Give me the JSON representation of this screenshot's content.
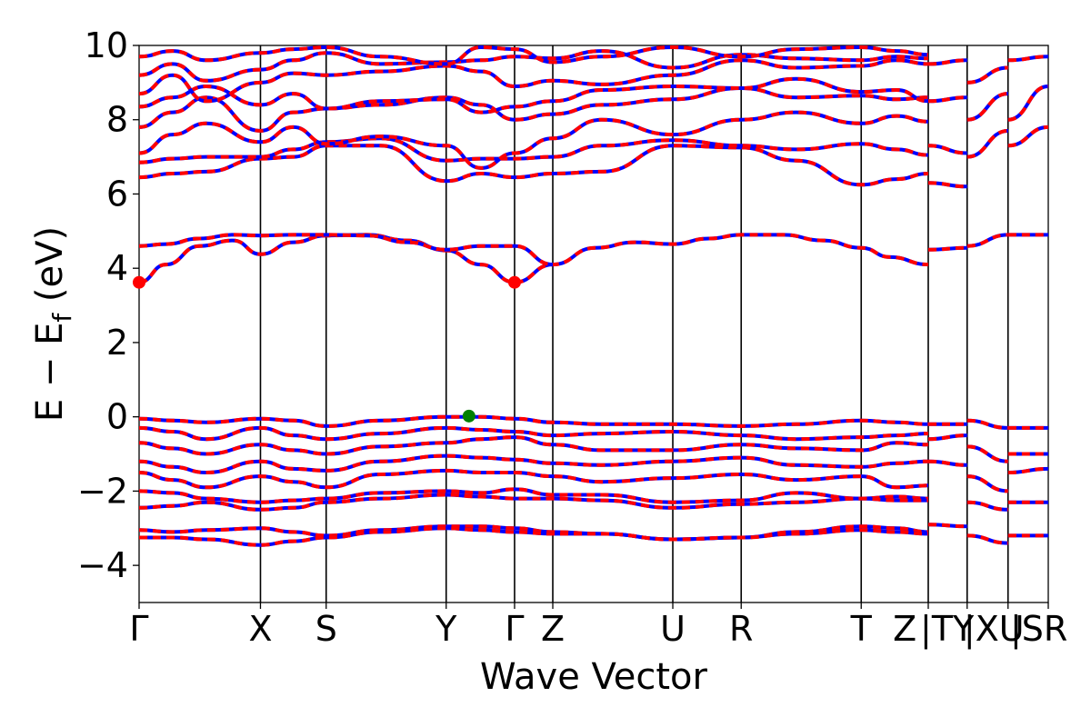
{
  "chart_data": {
    "type": "line",
    "title": "",
    "xlabel": "Wave Vector",
    "ylabel": "E − E_f (eV)",
    "ylabel_parts": {
      "prefix": "E − E",
      "subscript": "f",
      "suffix": " (eV)"
    },
    "ylim": [
      -5,
      10
    ],
    "yticks": [
      -4,
      -2,
      0,
      2,
      4,
      6,
      8,
      10
    ],
    "ytick_labels": [
      "−4",
      "−2",
      "0",
      "2",
      "4",
      "6",
      "8",
      "10"
    ],
    "grid": false,
    "legend": "none",
    "colors": {
      "series_a": "#ff0000",
      "series_b": "#0000ff",
      "vbm": "#008000",
      "cbm": "#ff0000"
    },
    "kpath_positions": [
      0,
      1.81,
      2.79,
      4.58,
      5.6,
      6.17,
      7.96,
      8.98,
      10.77,
      11.77,
      12.35,
      12.96,
      13.56
    ],
    "kpoint_labels": [
      "Γ",
      "X",
      "S",
      "Y",
      "Γ",
      "Z",
      "U",
      "R",
      "T",
      "Z",
      "|TY",
      "|XU",
      "|SR"
    ],
    "kpoint_label_positions": [
      0,
      1.81,
      2.79,
      4.58,
      5.6,
      6.17,
      7.96,
      8.98,
      10.77,
      11.42,
      12.05,
      12.75,
      13.42
    ],
    "bands": [
      {
        "x": [
          0,
          0.4,
          0.9,
          1.4,
          1.81,
          2.3,
          2.79,
          3.4,
          4.0,
          4.58,
          5.1,
          5.6,
          6.17,
          6.8,
          7.4,
          7.96,
          8.5,
          8.98,
          9.6,
          10.2,
          10.77,
          11.2,
          11.77
        ],
        "y": [
          3.62,
          4.1,
          4.6,
          4.75,
          4.38,
          4.7,
          4.88,
          4.9,
          4.75,
          4.48,
          4.1,
          3.62,
          4.1,
          4.55,
          4.7,
          4.65,
          4.8,
          4.9,
          4.9,
          4.75,
          4.55,
          4.3,
          4.1
        ]
      },
      {
        "x": [
          0,
          0.4,
          0.9,
          1.4,
          1.81,
          2.3,
          2.79,
          3.4,
          4.0,
          4.58,
          5.1,
          5.6,
          6.17
        ],
        "y": [
          4.6,
          4.65,
          4.8,
          4.9,
          4.88,
          4.9,
          4.9,
          4.88,
          4.7,
          4.5,
          4.6,
          4.6,
          4.1
        ]
      },
      {
        "x": [
          0,
          0.5,
          1.0,
          1.81,
          2.3,
          2.79,
          3.6,
          4.58,
          5.1,
          5.6,
          6.17,
          6.9,
          7.96,
          8.98,
          9.8,
          10.77,
          11.3,
          11.77
        ],
        "y": [
          6.45,
          6.55,
          6.6,
          6.95,
          7.0,
          7.3,
          7.3,
          6.35,
          6.55,
          6.45,
          6.55,
          6.6,
          7.3,
          7.25,
          6.9,
          6.25,
          6.4,
          6.55
        ]
      },
      {
        "x": [
          0,
          0.5,
          1.0,
          1.81,
          2.3,
          2.79,
          3.6,
          4.58,
          5.1,
          5.6,
          6.17,
          6.9,
          7.96,
          8.98,
          9.8,
          10.77,
          11.3,
          11.77
        ],
        "y": [
          6.85,
          6.95,
          7.0,
          7.0,
          7.2,
          7.4,
          7.5,
          6.9,
          6.95,
          6.95,
          7.0,
          7.3,
          7.45,
          7.3,
          7.2,
          7.35,
          7.2,
          7.05
        ]
      },
      {
        "x": [
          0,
          0.5,
          1.0,
          1.81,
          2.3,
          2.79,
          3.6,
          4.58,
          5.1,
          5.6,
          6.17,
          6.9,
          7.96,
          8.98,
          9.8,
          10.77,
          11.3,
          11.77
        ],
        "y": [
          7.1,
          7.6,
          7.9,
          7.4,
          7.8,
          7.35,
          7.55,
          7.3,
          6.7,
          7.1,
          7.5,
          8.0,
          7.6,
          8.0,
          8.2,
          7.9,
          8.1,
          7.95
        ]
      },
      {
        "x": [
          0,
          0.5,
          1.0,
          1.81,
          2.3,
          2.79,
          3.6,
          4.58,
          5.1,
          5.6,
          6.17,
          6.9,
          7.96,
          8.98,
          9.8,
          10.77,
          11.3,
          11.77
        ],
        "y": [
          7.8,
          8.2,
          8.6,
          7.7,
          8.2,
          8.3,
          8.4,
          8.6,
          8.4,
          8.0,
          8.15,
          8.4,
          8.55,
          8.85,
          8.6,
          8.65,
          8.55,
          8.6
        ]
      },
      {
        "x": [
          0,
          0.5,
          1.0,
          1.81,
          2.3,
          2.79,
          3.6,
          4.58,
          5.1,
          5.6,
          6.17,
          6.9,
          7.96,
          8.98,
          9.8,
          10.77,
          11.3,
          11.77
        ],
        "y": [
          8.35,
          8.6,
          8.9,
          8.4,
          8.7,
          8.3,
          8.5,
          8.55,
          8.2,
          8.35,
          8.5,
          8.8,
          8.9,
          8.85,
          9.1,
          8.75,
          8.8,
          8.5
        ]
      },
      {
        "x": [
          0,
          0.5,
          1.0,
          1.81,
          2.3,
          2.79,
          3.6,
          4.58,
          5.1,
          5.6,
          6.17,
          6.9,
          7.96,
          8.98,
          9.8,
          10.77,
          11.3,
          11.77
        ],
        "y": [
          8.7,
          9.2,
          8.5,
          9.0,
          9.25,
          9.2,
          9.3,
          9.45,
          9.3,
          8.9,
          9.05,
          8.95,
          9.2,
          9.6,
          9.4,
          9.45,
          9.6,
          9.5
        ]
      },
      {
        "x": [
          0,
          0.5,
          1.0,
          1.81,
          2.3,
          2.79,
          3.6,
          4.58,
          5.1,
          5.6,
          6.17,
          6.9,
          7.96,
          8.98,
          9.8,
          10.77,
          11.3,
          11.77
        ],
        "y": [
          9.2,
          9.5,
          9.05,
          9.35,
          9.6,
          9.8,
          9.5,
          9.55,
          9.6,
          9.7,
          9.65,
          9.85,
          9.4,
          9.75,
          9.65,
          9.6,
          9.7,
          9.65
        ]
      },
      {
        "x": [
          0,
          0.5,
          1.0,
          1.81,
          2.3,
          2.79,
          3.6,
          4.58,
          5.1,
          5.6,
          6.17,
          6.9,
          7.96,
          8.98,
          9.8,
          10.77,
          11.3,
          11.77
        ],
        "y": [
          9.7,
          9.85,
          9.6,
          9.8,
          9.9,
          9.95,
          9.7,
          9.5,
          9.95,
          9.9,
          9.55,
          9.7,
          9.95,
          9.7,
          9.9,
          9.95,
          9.85,
          9.75
        ]
      },
      {
        "x": [
          0,
          0.5,
          1.0,
          1.81,
          2.3,
          2.79,
          3.6,
          4.58,
          5.1,
          5.6,
          6.17,
          6.9,
          7.96,
          8.98,
          9.8,
          10.77,
          11.3,
          11.77
        ],
        "y": [
          -0.05,
          -0.1,
          -0.15,
          -0.05,
          -0.1,
          -0.25,
          -0.1,
          0.0,
          0.0,
          -0.05,
          -0.15,
          -0.2,
          -0.2,
          -0.25,
          -0.2,
          -0.1,
          -0.15,
          -0.2
        ]
      },
      {
        "x": [
          0,
          0.5,
          1.0,
          1.81,
          2.3,
          2.79,
          3.6,
          4.58,
          5.1,
          5.6,
          6.17,
          6.9,
          7.96,
          8.98,
          9.8,
          10.77,
          11.3,
          11.77
        ],
        "y": [
          -0.3,
          -0.4,
          -0.6,
          -0.3,
          -0.5,
          -0.6,
          -0.45,
          -0.3,
          -0.35,
          -0.4,
          -0.5,
          -0.45,
          -0.4,
          -0.5,
          -0.6,
          -0.55,
          -0.5,
          -0.45
        ]
      },
      {
        "x": [
          0,
          0.5,
          1.0,
          1.81,
          2.3,
          2.79,
          3.6,
          4.58,
          5.1,
          5.6,
          6.17,
          6.9,
          7.96,
          8.98,
          9.8,
          10.77,
          11.3,
          11.77
        ],
        "y": [
          -0.7,
          -0.85,
          -1.0,
          -0.75,
          -0.9,
          -1.0,
          -0.8,
          -0.7,
          -0.6,
          -0.55,
          -0.75,
          -0.9,
          -0.9,
          -0.75,
          -0.85,
          -0.9,
          -0.7,
          -0.75
        ]
      },
      {
        "x": [
          0,
          0.5,
          1.0,
          1.81,
          2.3,
          2.79,
          3.6,
          4.58,
          5.1,
          5.6,
          6.17,
          6.9,
          7.96,
          8.98,
          9.8,
          10.77,
          11.3,
          11.77
        ],
        "y": [
          -1.2,
          -1.35,
          -1.5,
          -1.2,
          -1.4,
          -1.45,
          -1.2,
          -1.05,
          -1.1,
          -1.15,
          -1.25,
          -1.3,
          -1.2,
          -1.1,
          -1.3,
          -1.35,
          -1.25,
          -1.2
        ]
      },
      {
        "x": [
          0,
          0.5,
          1.0,
          1.81,
          2.3,
          2.79,
          3.6,
          4.58,
          5.1,
          5.6,
          6.17,
          6.9,
          7.96,
          8.98,
          9.8,
          10.77,
          11.3,
          11.77
        ],
        "y": [
          -1.5,
          -1.7,
          -1.9,
          -1.6,
          -1.75,
          -1.9,
          -1.55,
          -1.45,
          -1.5,
          -1.5,
          -1.6,
          -1.75,
          -1.65,
          -1.55,
          -1.7,
          -1.6,
          -1.9,
          -1.85
        ]
      },
      {
        "x": [
          0,
          0.5,
          1.0,
          1.81,
          2.3,
          2.79,
          3.6,
          4.58,
          5.1,
          5.6,
          6.17,
          6.9,
          7.96,
          8.98,
          9.8,
          10.77,
          11.3,
          11.77
        ],
        "y": [
          -2.0,
          -2.05,
          -2.2,
          -2.3,
          -2.25,
          -2.2,
          -2.05,
          -2.0,
          -2.05,
          -1.95,
          -2.1,
          -2.1,
          -2.3,
          -2.25,
          -2.05,
          -2.2,
          -2.15,
          -2.2
        ]
      },
      {
        "x": [
          0,
          0.5,
          1.0,
          1.81,
          2.3,
          2.79,
          3.6,
          4.58,
          5.1,
          5.6,
          6.17,
          6.9,
          7.96,
          8.98,
          9.8,
          10.77,
          11.3,
          11.77
        ],
        "y": [
          -2.45,
          -2.4,
          -2.3,
          -2.5,
          -2.45,
          -2.3,
          -2.2,
          -2.1,
          -2.15,
          -2.2,
          -2.2,
          -2.25,
          -2.45,
          -2.35,
          -2.3,
          -2.2,
          -2.25,
          -2.25
        ]
      },
      {
        "x": [
          0,
          0.5,
          1.0,
          1.81,
          2.3,
          2.79,
          3.6,
          4.58,
          5.1,
          5.6,
          6.17,
          6.9,
          7.96,
          8.98,
          9.8,
          10.77,
          11.3,
          11.77
        ],
        "y": [
          -3.05,
          -3.1,
          -3.05,
          -3.0,
          -3.1,
          -3.2,
          -3.05,
          -2.95,
          -2.95,
          -3.0,
          -3.1,
          -3.15,
          -3.3,
          -3.25,
          -3.1,
          -2.95,
          -3.0,
          -3.1
        ]
      },
      {
        "x": [
          0,
          0.5,
          1.0,
          1.81,
          2.3,
          2.79,
          3.6,
          4.58,
          5.1,
          5.6,
          6.17,
          6.9,
          7.96,
          8.98,
          9.8,
          10.77,
          11.3,
          11.77
        ],
        "y": [
          -3.25,
          -3.25,
          -3.3,
          -3.45,
          -3.35,
          -3.25,
          -3.1,
          -3.0,
          -3.05,
          -3.1,
          -3.15,
          -3.15,
          -3.3,
          -3.25,
          -3.15,
          -3.05,
          -3.1,
          -3.15
        ]
      },
      {
        "x": [
          11.77,
          12.35
        ],
        "y": [
          4.5,
          4.55
        ]
      },
      {
        "x": [
          12.35,
          12.96
        ],
        "y": [
          4.6,
          4.9
        ]
      },
      {
        "x": [
          12.96,
          13.56
        ],
        "y": [
          4.9,
          4.9
        ]
      },
      {
        "x": [
          11.77,
          12.35
        ],
        "y": [
          6.3,
          6.2
        ]
      },
      {
        "x": [
          11.77,
          12.35
        ],
        "y": [
          7.3,
          7.1
        ]
      },
      {
        "x": [
          11.77,
          12.35
        ],
        "y": [
          8.5,
          8.6
        ]
      },
      {
        "x": [
          11.77,
          12.35
        ],
        "y": [
          9.5,
          9.6
        ]
      },
      {
        "x": [
          12.35,
          12.96
        ],
        "y": [
          7.0,
          7.7
        ]
      },
      {
        "x": [
          12.35,
          12.96
        ],
        "y": [
          8.0,
          8.7
        ]
      },
      {
        "x": [
          12.35,
          12.96
        ],
        "y": [
          9.0,
          9.4
        ]
      },
      {
        "x": [
          12.96,
          13.56
        ],
        "y": [
          7.3,
          7.8
        ]
      },
      {
        "x": [
          12.96,
          13.56
        ],
        "y": [
          8.0,
          8.9
        ]
      },
      {
        "x": [
          12.96,
          13.56
        ],
        "y": [
          9.6,
          9.7
        ]
      },
      {
        "x": [
          11.77,
          12.35
        ],
        "y": [
          -0.2,
          -0.2
        ]
      },
      {
        "x": [
          11.77,
          12.35
        ],
        "y": [
          -0.6,
          -0.5
        ]
      },
      {
        "x": [
          11.77,
          12.35
        ],
        "y": [
          -1.2,
          -1.3
        ]
      },
      {
        "x": [
          11.77,
          12.35
        ],
        "y": [
          -2.9,
          -2.95
        ]
      },
      {
        "x": [
          12.35,
          12.96
        ],
        "y": [
          -0.1,
          -0.3
        ]
      },
      {
        "x": [
          12.35,
          12.96
        ],
        "y": [
          -0.8,
          -1.2
        ]
      },
      {
        "x": [
          12.35,
          12.96
        ],
        "y": [
          -1.6,
          -2.0
        ]
      },
      {
        "x": [
          12.35,
          12.96
        ],
        "y": [
          -2.3,
          -2.5
        ]
      },
      {
        "x": [
          12.35,
          12.96
        ],
        "y": [
          -3.2,
          -3.4
        ]
      },
      {
        "x": [
          12.96,
          13.56
        ],
        "y": [
          -0.3,
          -0.3
        ]
      },
      {
        "x": [
          12.96,
          13.56
        ],
        "y": [
          -1.0,
          -1.0
        ]
      },
      {
        "x": [
          12.96,
          13.56
        ],
        "y": [
          -1.5,
          -1.4
        ]
      },
      {
        "x": [
          12.96,
          13.56
        ],
        "y": [
          -2.3,
          -2.3
        ]
      },
      {
        "x": [
          12.96,
          13.56
        ],
        "y": [
          -3.2,
          -3.2
        ]
      }
    ],
    "markers": [
      {
        "x": 0,
        "y": 3.62,
        "color": "#ff0000"
      },
      {
        "x": 5.6,
        "y": 3.62,
        "color": "#ff0000"
      },
      {
        "x": 4.92,
        "y": 0.02,
        "color": "#008000"
      }
    ]
  }
}
